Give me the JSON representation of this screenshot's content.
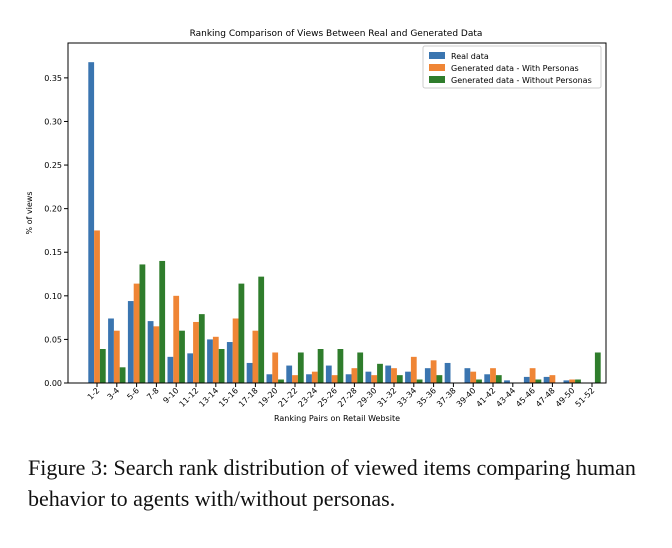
{
  "chart_data": {
    "type": "bar",
    "title": "Ranking Comparison of Views Between Real and Generated Data",
    "xlabel": "Ranking Pairs on Retail Website",
    "ylabel": "% of views",
    "ylim": [
      0,
      0.39
    ],
    "yticks": [
      "0.00",
      "0.05",
      "0.10",
      "0.15",
      "0.20",
      "0.25",
      "0.30",
      "0.35"
    ],
    "legend_position": "top-right",
    "grid": false,
    "categories": [
      "1-2",
      "3-4",
      "5-6",
      "7-8",
      "9-10",
      "11-12",
      "13-14",
      "15-16",
      "17-18",
      "19-20",
      "21-22",
      "23-24",
      "25-26",
      "27-28",
      "29-30",
      "31-32",
      "33-34",
      "35-36",
      "37-38",
      "39-40",
      "41-42",
      "43-44",
      "45-46",
      "47-48",
      "49-50",
      "51-52"
    ],
    "series": [
      {
        "name": "Real data",
        "color": "#3a75b0",
        "values": [
          0.368,
          0.074,
          0.094,
          0.071,
          0.03,
          0.034,
          0.05,
          0.047,
          0.023,
          0.01,
          0.02,
          0.01,
          0.02,
          0.01,
          0.013,
          0.02,
          0.013,
          0.017,
          0.023,
          0.017,
          0.01,
          0.003,
          0.007,
          0.007,
          0.003,
          0.0
        ]
      },
      {
        "name": "Generated data - With Personas",
        "color": "#ef8535",
        "values": [
          0.175,
          0.06,
          0.114,
          0.065,
          0.1,
          0.07,
          0.053,
          0.074,
          0.06,
          0.035,
          0.009,
          0.013,
          0.009,
          0.017,
          0.009,
          0.017,
          0.03,
          0.026,
          0.0,
          0.013,
          0.017,
          0.0,
          0.017,
          0.009,
          0.004,
          0.0
        ]
      },
      {
        "name": "Generated data - Without Personas",
        "color": "#2f7d2c",
        "values": [
          0.039,
          0.018,
          0.136,
          0.14,
          0.06,
          0.079,
          0.039,
          0.114,
          0.122,
          0.004,
          0.035,
          0.039,
          0.039,
          0.035,
          0.022,
          0.009,
          0.004,
          0.009,
          0.0,
          0.004,
          0.009,
          0.0,
          0.004,
          0.0,
          0.004,
          0.035
        ]
      }
    ]
  },
  "caption": "Figure 3: Search rank distribution of viewed items comparing human behavior to agents with/without personas."
}
